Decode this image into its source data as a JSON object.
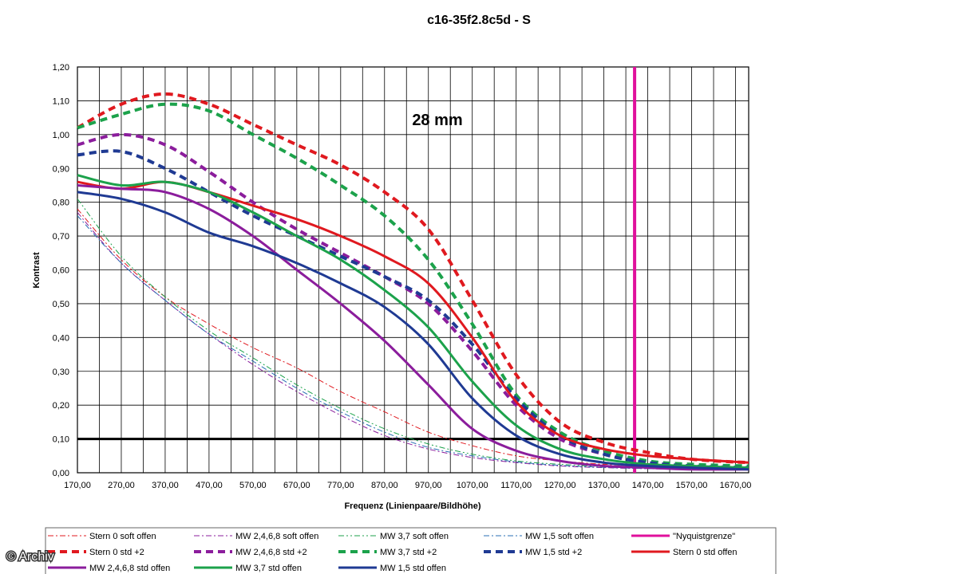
{
  "watermark": "© Archiv",
  "chart_data": {
    "type": "line",
    "title": "c16-35f2.8c5d - S",
    "annotation": "28 mm",
    "xlabel": "Frequenz (Linienpaare/Bildhöhe)",
    "ylabel": "Kontrast",
    "xlim": [
      170,
      1700
    ],
    "ylim": [
      0,
      1.2
    ],
    "x_ticks": [
      "170,00",
      "270,00",
      "370,00",
      "470,00",
      "570,00",
      "670,00",
      "770,00",
      "870,00",
      "970,00",
      "1070,00",
      "1170,00",
      "1270,00",
      "1370,00",
      "1470,00",
      "1570,00",
      "1670,00"
    ],
    "y_ticks": [
      "0,00",
      "0,10",
      "0,20",
      "0,30",
      "0,40",
      "0,50",
      "0,60",
      "0,70",
      "0,80",
      "0,90",
      "1,00",
      "1,10",
      "1,20"
    ],
    "grid": true,
    "legend_position": "bottom",
    "reference_lines": [
      {
        "kind": "horizontal",
        "y": 0.1,
        "color": "#000000"
      },
      {
        "kind": "vertical",
        "x": 1440,
        "color": "#e0109c",
        "name": "\"Nyquistgrenze\""
      }
    ],
    "series": [
      {
        "name": "Stern 0 soft offen",
        "color": "#e0191f",
        "style": "dashdot",
        "width": 1,
        "x": [
          170,
          270,
          370,
          470,
          570,
          670,
          770,
          870,
          970,
          1070,
          1170,
          1270,
          1370,
          1470,
          1570,
          1700
        ],
        "y": [
          0.78,
          0.63,
          0.52,
          0.44,
          0.37,
          0.31,
          0.24,
          0.18,
          0.12,
          0.08,
          0.05,
          0.035,
          0.025,
          0.02,
          0.017,
          0.015
        ]
      },
      {
        "name": "MW 2,4,6,8 soft offen",
        "color": "#8b1d9c",
        "style": "dashdot",
        "width": 1,
        "x": [
          170,
          270,
          370,
          470,
          570,
          670,
          770,
          870,
          970,
          1070,
          1170,
          1270,
          1370,
          1470,
          1570,
          1700
        ],
        "y": [
          0.77,
          0.62,
          0.51,
          0.41,
          0.32,
          0.24,
          0.17,
          0.11,
          0.07,
          0.045,
          0.03,
          0.02,
          0.015,
          0.012,
          0.01,
          0.01
        ]
      },
      {
        "name": "MW 3,7 soft offen",
        "color": "#1ca24b",
        "style": "dashdotdot",
        "width": 1,
        "x": [
          170,
          270,
          370,
          470,
          570,
          670,
          770,
          870,
          970,
          1070,
          1170,
          1270,
          1370,
          1470,
          1570,
          1700
        ],
        "y": [
          0.81,
          0.64,
          0.52,
          0.42,
          0.34,
          0.26,
          0.19,
          0.13,
          0.085,
          0.055,
          0.035,
          0.025,
          0.018,
          0.014,
          0.012,
          0.01
        ]
      },
      {
        "name": "MW 1,5 soft offen",
        "color": "#2a6fb4",
        "style": "dashdot",
        "width": 1,
        "x": [
          170,
          270,
          370,
          470,
          570,
          670,
          770,
          870,
          970,
          1070,
          1170,
          1270,
          1370,
          1470,
          1570,
          1700
        ],
        "y": [
          0.76,
          0.62,
          0.51,
          0.41,
          0.33,
          0.25,
          0.18,
          0.12,
          0.075,
          0.05,
          0.032,
          0.022,
          0.016,
          0.012,
          0.01,
          0.01
        ]
      },
      {
        "name": "Stern 0 std +2",
        "color": "#e0191f",
        "style": "dash",
        "width": 4,
        "x": [
          170,
          270,
          370,
          470,
          570,
          670,
          770,
          870,
          970,
          1070,
          1170,
          1270,
          1370,
          1470,
          1570,
          1700
        ],
        "y": [
          1.02,
          1.09,
          1.12,
          1.09,
          1.03,
          0.97,
          0.91,
          0.83,
          0.72,
          0.51,
          0.29,
          0.15,
          0.09,
          0.06,
          0.04,
          0.03
        ]
      },
      {
        "name": "MW 2,4,6,8 std +2",
        "color": "#8b1d9c",
        "style": "dash",
        "width": 4,
        "x": [
          170,
          270,
          370,
          470,
          570,
          670,
          770,
          870,
          970,
          1070,
          1170,
          1270,
          1370,
          1470,
          1570,
          1700
        ],
        "y": [
          0.97,
          1.0,
          0.97,
          0.89,
          0.8,
          0.72,
          0.65,
          0.58,
          0.5,
          0.36,
          0.2,
          0.1,
          0.055,
          0.03,
          0.02,
          0.015
        ]
      },
      {
        "name": "MW 3,7 std +2",
        "color": "#1ca24b",
        "style": "dash",
        "width": 4,
        "x": [
          170,
          270,
          370,
          470,
          570,
          670,
          770,
          870,
          970,
          1070,
          1170,
          1270,
          1370,
          1470,
          1570,
          1700
        ],
        "y": [
          1.02,
          1.06,
          1.09,
          1.07,
          1.0,
          0.93,
          0.85,
          0.76,
          0.63,
          0.44,
          0.23,
          0.12,
          0.065,
          0.035,
          0.025,
          0.02
        ]
      },
      {
        "name": "MW 1,5 std +2",
        "color": "#1f3a93",
        "style": "dash",
        "width": 4,
        "x": [
          170,
          270,
          370,
          470,
          570,
          670,
          770,
          870,
          970,
          1070,
          1170,
          1270,
          1370,
          1470,
          1570,
          1700
        ],
        "y": [
          0.94,
          0.95,
          0.9,
          0.83,
          0.76,
          0.7,
          0.64,
          0.58,
          0.51,
          0.38,
          0.22,
          0.11,
          0.055,
          0.03,
          0.02,
          0.015
        ]
      },
      {
        "name": "Stern 0 std offen",
        "color": "#e0191f",
        "style": "solid",
        "width": 3,
        "x": [
          170,
          270,
          370,
          470,
          570,
          670,
          770,
          870,
          970,
          1070,
          1170,
          1270,
          1370,
          1470,
          1570,
          1700
        ],
        "y": [
          0.86,
          0.84,
          0.86,
          0.83,
          0.79,
          0.75,
          0.7,
          0.64,
          0.56,
          0.4,
          0.21,
          0.11,
          0.07,
          0.05,
          0.04,
          0.03
        ]
      },
      {
        "name": "MW 2,4,6,8 std offen",
        "color": "#8b1d9c",
        "style": "solid",
        "width": 3,
        "x": [
          170,
          270,
          370,
          470,
          570,
          670,
          770,
          870,
          970,
          1070,
          1170,
          1270,
          1370,
          1470,
          1570,
          1700
        ],
        "y": [
          0.85,
          0.84,
          0.83,
          0.78,
          0.7,
          0.6,
          0.5,
          0.39,
          0.26,
          0.13,
          0.065,
          0.035,
          0.02,
          0.015,
          0.01,
          0.01
        ]
      },
      {
        "name": "MW 3,7 std offen",
        "color": "#1ca24b",
        "style": "solid",
        "width": 3,
        "x": [
          170,
          270,
          370,
          470,
          570,
          670,
          770,
          870,
          970,
          1070,
          1170,
          1270,
          1370,
          1470,
          1570,
          1700
        ],
        "y": [
          0.88,
          0.85,
          0.86,
          0.83,
          0.77,
          0.7,
          0.63,
          0.54,
          0.43,
          0.27,
          0.14,
          0.07,
          0.04,
          0.025,
          0.02,
          0.015
        ]
      },
      {
        "name": "MW 1,5 std offen",
        "color": "#1f3a93",
        "style": "solid",
        "width": 3,
        "x": [
          170,
          270,
          370,
          470,
          570,
          670,
          770,
          870,
          970,
          1070,
          1170,
          1270,
          1370,
          1470,
          1570,
          1700
        ],
        "y": [
          0.83,
          0.81,
          0.77,
          0.71,
          0.67,
          0.62,
          0.56,
          0.49,
          0.38,
          0.22,
          0.11,
          0.055,
          0.03,
          0.02,
          0.015,
          0.01
        ]
      }
    ]
  }
}
